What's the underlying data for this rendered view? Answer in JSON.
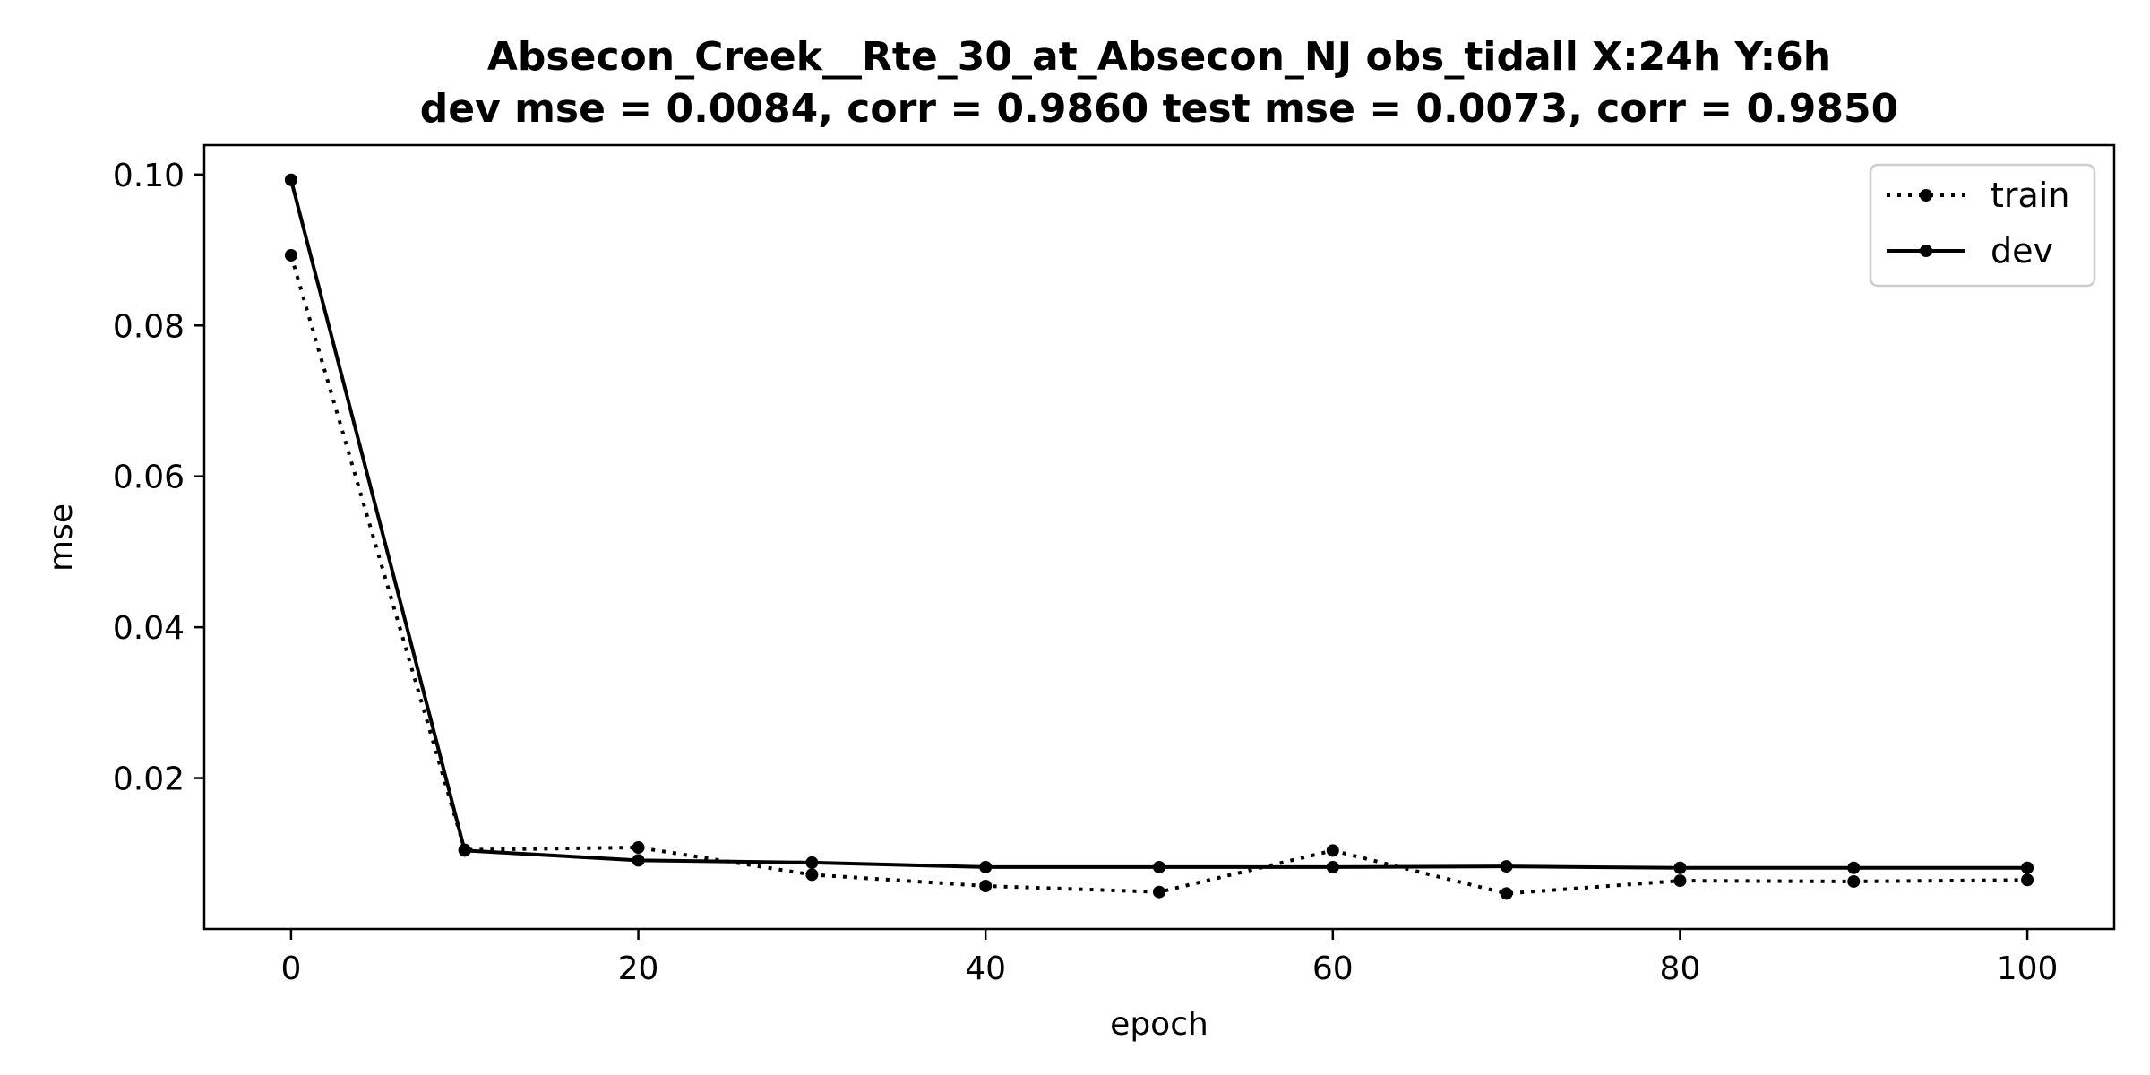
{
  "chart_data": {
    "type": "line",
    "title_lines": [
      "Absecon_Creek__Rte_30_at_Absecon_NJ   obs_tidall   X:24h   Y:6h",
      "dev mse = 0.0084, corr = 0.9860   test mse = 0.0073, corr = 0.9850"
    ],
    "xlabel": "epoch",
    "ylabel": "mse",
    "xlim": [
      -5,
      105
    ],
    "ylim": [
      0.0,
      0.1039
    ],
    "xticks": [
      0,
      20,
      40,
      60,
      80,
      100
    ],
    "yticks": [
      0.02,
      0.04,
      0.06,
      0.08,
      0.1
    ],
    "xtick_labels": [
      "0",
      "20",
      "40",
      "60",
      "80",
      "100"
    ],
    "ytick_labels": [
      "0.02",
      "0.04",
      "0.06",
      "0.08",
      "0.10"
    ],
    "legend_position": "upper right",
    "grid": false,
    "series": [
      {
        "name": "train",
        "style": "dotted",
        "marker": "dot",
        "color": "#000000",
        "x": [
          0,
          10,
          20,
          30,
          40,
          50,
          60,
          70,
          80,
          90,
          100
        ],
        "values": [
          0.0893,
          0.0105,
          0.0108,
          0.0072,
          0.0057,
          0.0049,
          0.0104,
          0.0047,
          0.0064,
          0.0063,
          0.0065
        ]
      },
      {
        "name": "dev",
        "style": "solid",
        "marker": "dot",
        "color": "#000000",
        "x": [
          0,
          10,
          20,
          30,
          40,
          50,
          60,
          70,
          80,
          90,
          100
        ],
        "values": [
          0.0993,
          0.0104,
          0.0091,
          0.0088,
          0.0082,
          0.0082,
          0.0082,
          0.0083,
          0.0081,
          0.0081,
          0.0081
        ]
      }
    ]
  }
}
